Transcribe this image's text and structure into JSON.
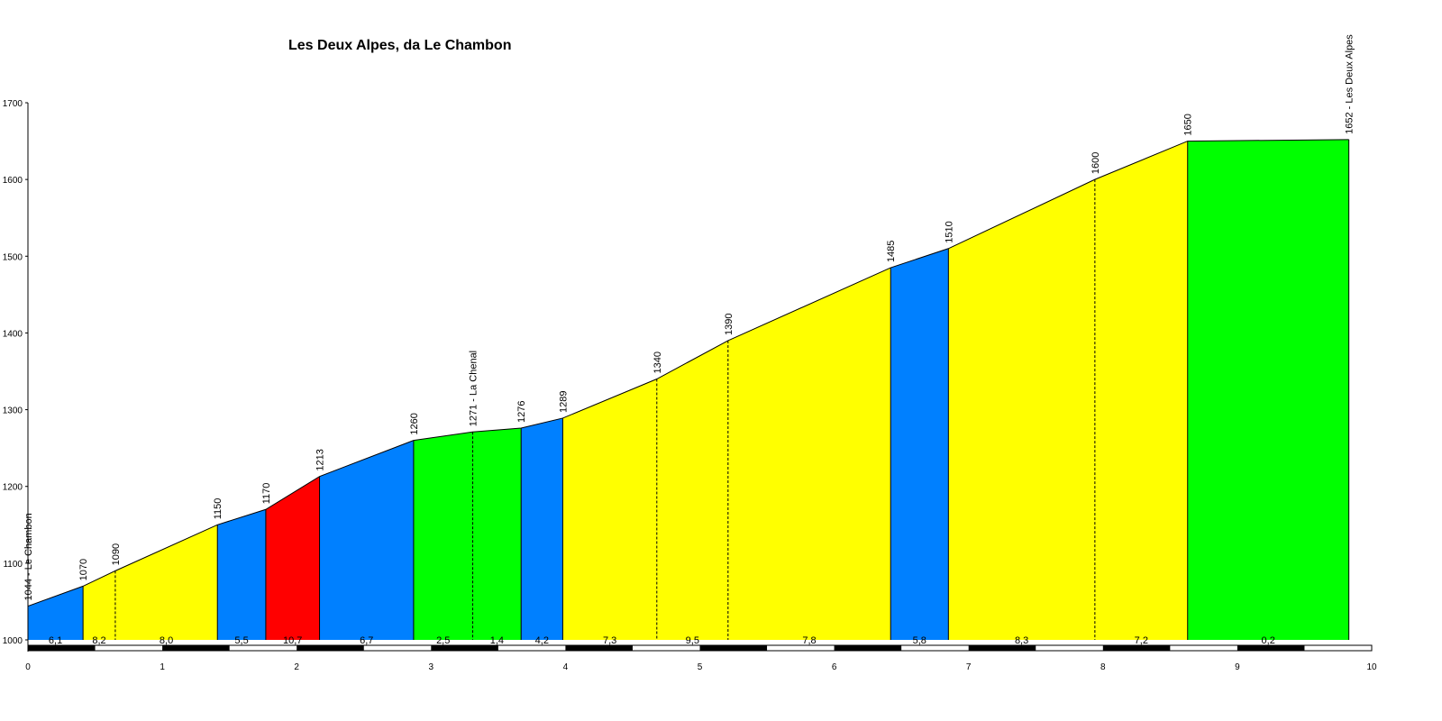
{
  "chart_data": {
    "type": "area",
    "title": "Les Deux Alpes, da Le Chambon",
    "xlim": [
      0,
      10
    ],
    "ylim": [
      1000,
      1700
    ],
    "x_ticks": [
      "0",
      "1",
      "2",
      "3",
      "4",
      "5",
      "6",
      "7",
      "8",
      "9",
      "10"
    ],
    "y_ticks": [
      "1000",
      "1100",
      "1200",
      "1300",
      "1400",
      "1500",
      "1600",
      "1700"
    ],
    "points": [
      {
        "x": 0.0,
        "y": 1044,
        "label": "1044 - Le Chambon"
      },
      {
        "x": 0.41,
        "y": 1070,
        "label": "1070"
      },
      {
        "x": 0.65,
        "y": 1090,
        "label": "1090"
      },
      {
        "x": 1.41,
        "y": 1150,
        "label": "1150"
      },
      {
        "x": 1.77,
        "y": 1170,
        "label": "1170"
      },
      {
        "x": 2.17,
        "y": 1213,
        "label": "1213"
      },
      {
        "x": 2.87,
        "y": 1260,
        "label": "1260"
      },
      {
        "x": 3.31,
        "y": 1271,
        "label": "1271 - La Chenal"
      },
      {
        "x": 3.67,
        "y": 1276,
        "label": "1276"
      },
      {
        "x": 3.98,
        "y": 1289,
        "label": "1289"
      },
      {
        "x": 4.68,
        "y": 1340,
        "label": "1340"
      },
      {
        "x": 5.21,
        "y": 1390,
        "label": "1390"
      },
      {
        "x": 6.42,
        "y": 1485,
        "label": "1485"
      },
      {
        "x": 6.85,
        "y": 1510,
        "label": "1510"
      },
      {
        "x": 7.94,
        "y": 1600,
        "label": "1600"
      },
      {
        "x": 8.63,
        "y": 1650,
        "label": "1650"
      },
      {
        "x": 9.83,
        "y": 1652,
        "label": "1652 - Les Deux Alpes"
      }
    ],
    "segments": [
      {
        "gradient": "6,1",
        "color": "#0080FF"
      },
      {
        "gradient": "8,2",
        "color": "#FFFF00"
      },
      {
        "gradient": "8,0",
        "color": "#FFFF00"
      },
      {
        "gradient": "5,5",
        "color": "#0080FF"
      },
      {
        "gradient": "10,7",
        "color": "#FF0000"
      },
      {
        "gradient": "6,7",
        "color": "#0080FF"
      },
      {
        "gradient": "2,5",
        "color": "#00FF00"
      },
      {
        "gradient": "1,4",
        "color": "#00FF00"
      },
      {
        "gradient": "4,2",
        "color": "#0080FF"
      },
      {
        "gradient": "7,3",
        "color": "#FFFF00"
      },
      {
        "gradient": "9,5",
        "color": "#FFFF00"
      },
      {
        "gradient": "7,8",
        "color": "#FFFF00"
      },
      {
        "gradient": "5,8",
        "color": "#0080FF"
      },
      {
        "gradient": "8,3",
        "color": "#FFFF00"
      },
      {
        "gradient": "7,2",
        "color": "#FFFF00"
      },
      {
        "gradient": "0,2",
        "color": "#00FF00"
      }
    ],
    "colors": {
      "blue": "#0080FF",
      "yellow": "#FFFF00",
      "red": "#FF0000",
      "green": "#00FF00"
    },
    "grid": false
  }
}
